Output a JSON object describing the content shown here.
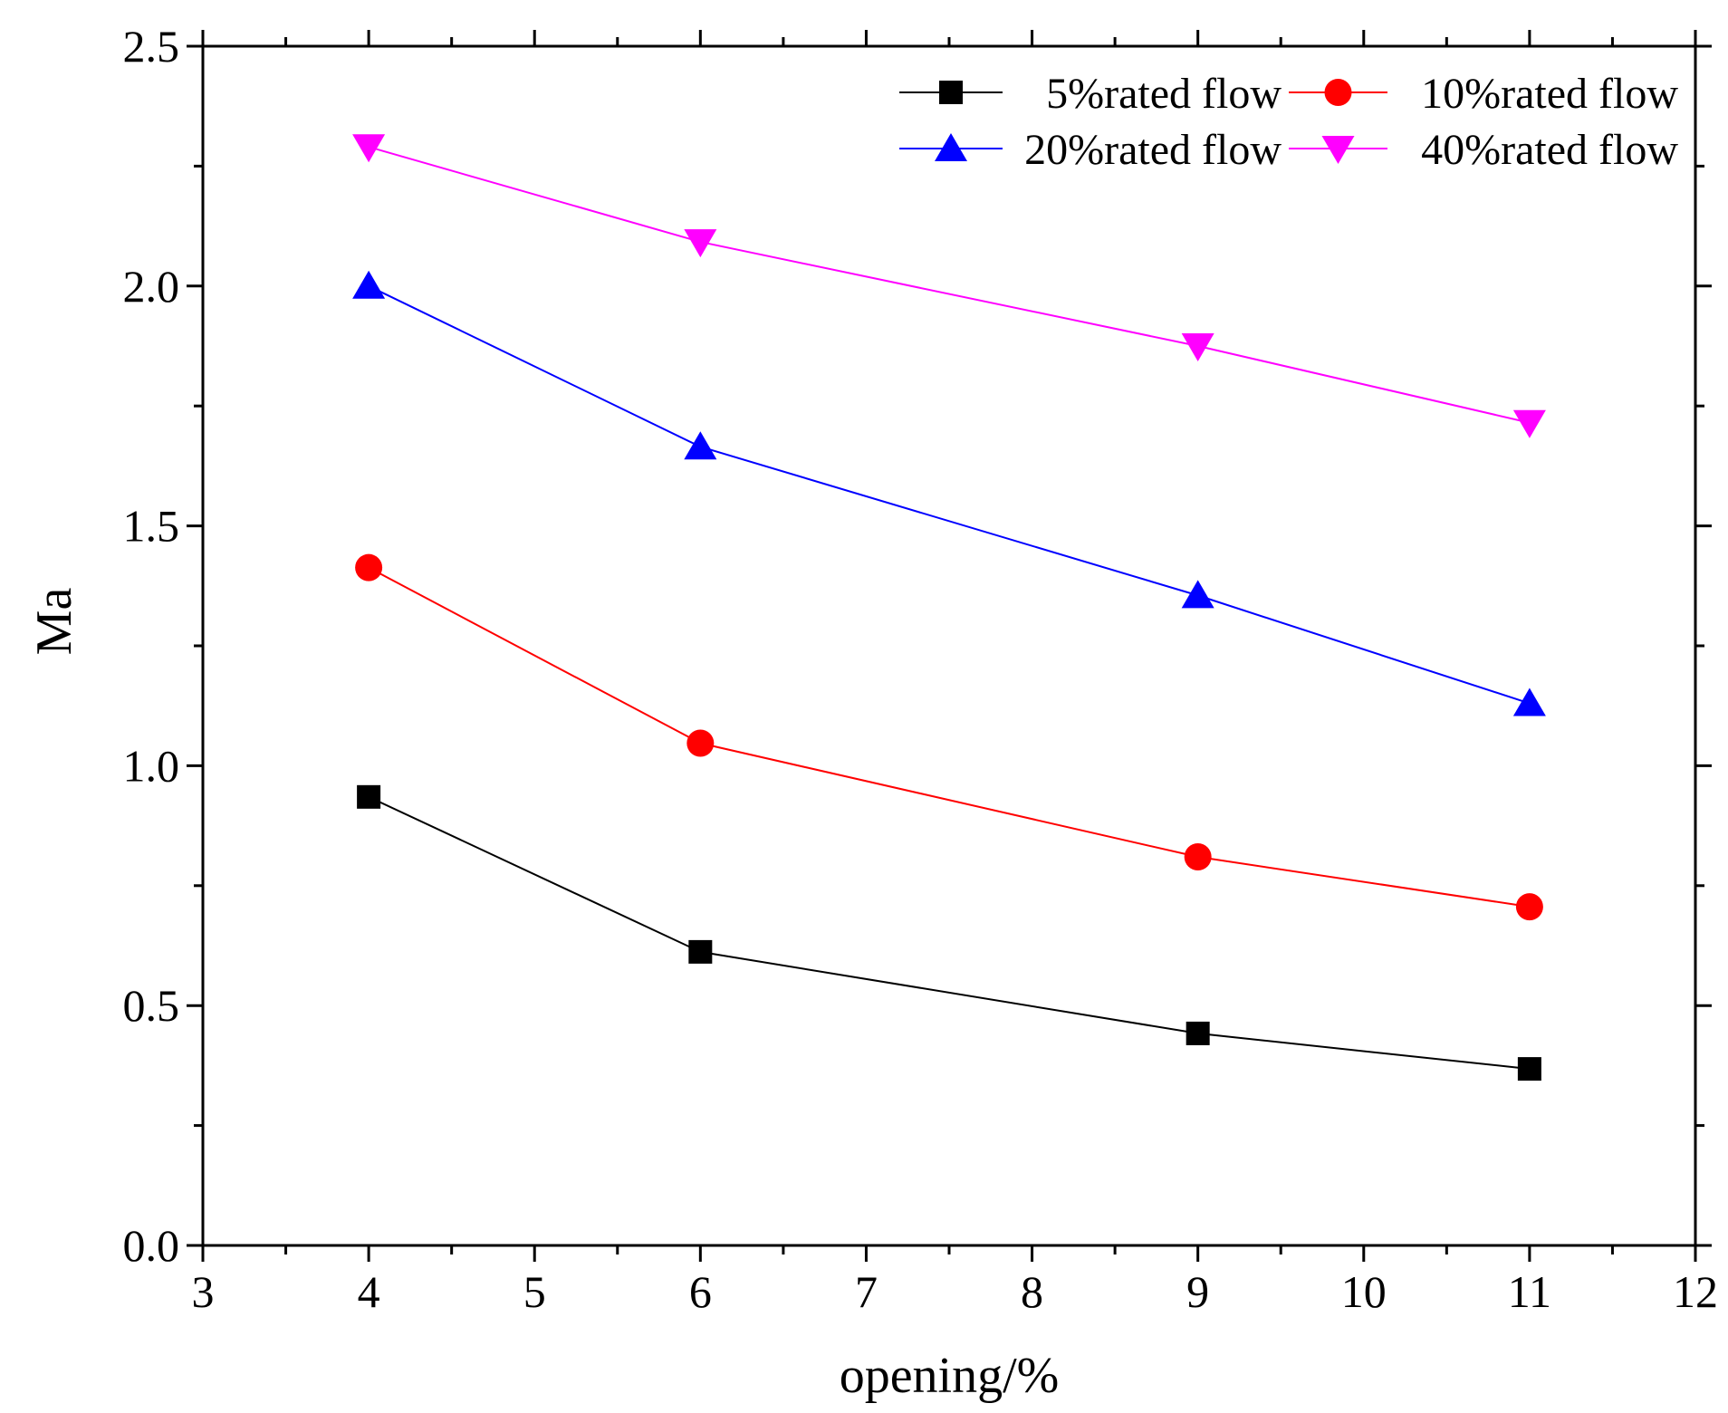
{
  "chart_data": {
    "type": "line",
    "title": "",
    "xlabel": "opening/%",
    "ylabel": "Ma",
    "xlim": [
      3,
      12
    ],
    "ylim": [
      0.0,
      2.5
    ],
    "xticks": [
      3,
      4,
      5,
      6,
      7,
      8,
      9,
      10,
      11,
      12
    ],
    "xtick_labels": [
      "3",
      "4",
      "5",
      "6",
      "7",
      "8",
      "9",
      "10",
      "11",
      "12"
    ],
    "yticks": [
      0.0,
      0.5,
      1.0,
      1.5,
      2.0,
      2.5
    ],
    "ytick_labels": [
      "0.0",
      "0.5",
      "1.0",
      "1.5",
      "2.0",
      "2.5"
    ],
    "grid": false,
    "legend_position": "top-right",
    "x": [
      4,
      6,
      9,
      11
    ],
    "series": [
      {
        "name": "5%rated flow",
        "color": "#000000",
        "marker": "square",
        "values": [
          0.935,
          0.612,
          0.442,
          0.368
        ]
      },
      {
        "name": "10%rated flow",
        "color": "#ff0000",
        "marker": "circle",
        "values": [
          1.413,
          1.047,
          0.81,
          0.706
        ]
      },
      {
        "name": "20%rated flow",
        "color": "#0000ff",
        "marker": "triangle-up",
        "values": [
          2.0,
          1.665,
          1.355,
          1.13
        ]
      },
      {
        "name": "40%rated flow",
        "color": "#ff00ff",
        "marker": "triangle-down",
        "values": [
          2.29,
          2.092,
          1.875,
          1.715
        ]
      }
    ]
  }
}
